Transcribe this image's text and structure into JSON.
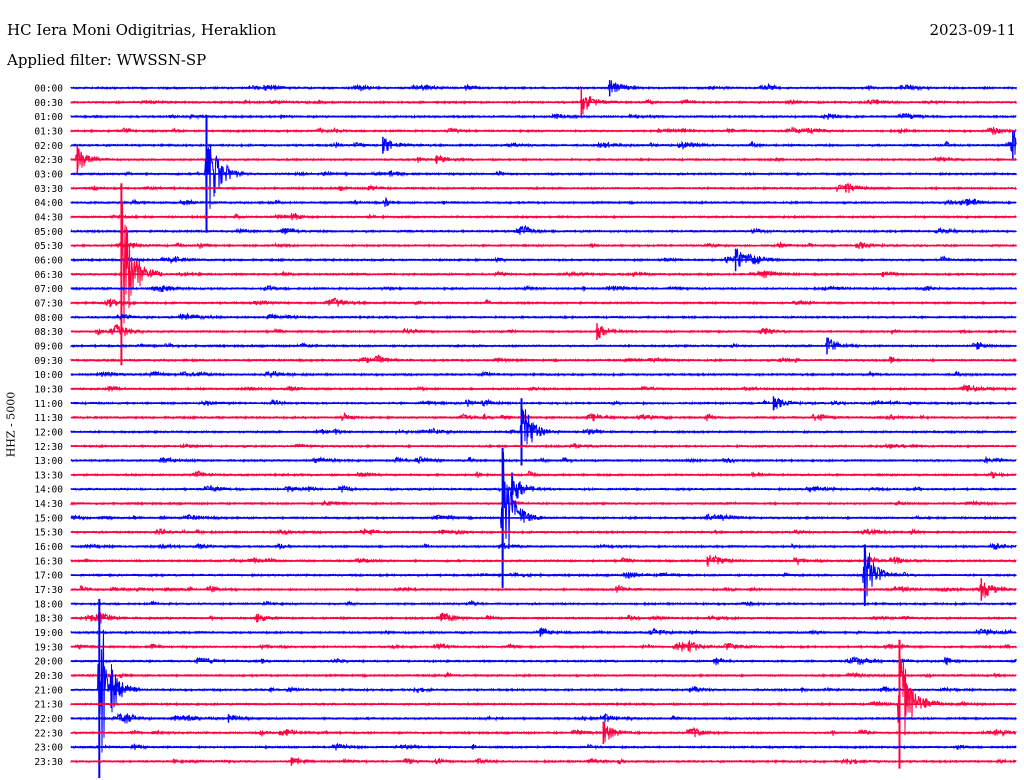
{
  "header": {
    "station": "HC Iera Moni Odigitrias, Heraklion",
    "date": "2023-09-11",
    "filter": "Applied filter: WWSSN-SP"
  },
  "colors": {
    "blue": "#0000ff",
    "red": "#ff0040",
    "background": "#ffffff"
  },
  "chart_data": {
    "type": "line",
    "title": "HC Iera Moni Odigitrias, Heraklion",
    "ylabel": "HHZ - 5000",
    "xlabel": "",
    "grid": false,
    "row_labels": [
      "00:00",
      "00:30",
      "01:00",
      "01:30",
      "02:00",
      "02:30",
      "03:00",
      "03:30",
      "04:00",
      "04:30",
      "05:00",
      "05:30",
      "06:00",
      "06:30",
      "07:00",
      "07:30",
      "08:00",
      "08:30",
      "09:00",
      "09:30",
      "10:00",
      "10:30",
      "11:00",
      "11:30",
      "12:00",
      "12:30",
      "13:00",
      "13:30",
      "14:00",
      "14:30",
      "15:00",
      "15:30",
      "16:00",
      "16:30",
      "17:00",
      "17:30",
      "18:00",
      "18:30",
      "19:00",
      "19:30",
      "20:00",
      "20:30",
      "21:00",
      "21:30",
      "22:00",
      "22:30",
      "23:00",
      "23:30"
    ],
    "row_colors": [
      "blue",
      "red"
    ],
    "events": [
      {
        "row": "00:00",
        "minute": 17.1,
        "amplitude": 0.6
      },
      {
        "row": "00:30",
        "minute": 16.2,
        "amplitude": 1.0
      },
      {
        "row": "02:00",
        "minute": 9.9,
        "amplitude": 0.6
      },
      {
        "row": "02:00",
        "minute": 29.9,
        "amplitude": 1.0
      },
      {
        "row": "02:30",
        "minute": 0.2,
        "amplitude": 1.0
      },
      {
        "row": "02:30",
        "minute": 11.6,
        "amplitude": 0.3
      },
      {
        "row": "03:00",
        "minute": 4.3,
        "amplitude": 4.2
      },
      {
        "row": "03:30",
        "minute": 24.6,
        "amplitude": 0.3
      },
      {
        "row": "06:00",
        "minute": 21.1,
        "amplitude": 0.8
      },
      {
        "row": "06:30",
        "minute": 1.6,
        "amplitude": 6.5
      },
      {
        "row": "08:30",
        "minute": 16.7,
        "amplitude": 0.6
      },
      {
        "row": "09:00",
        "minute": 24.0,
        "amplitude": 0.6
      },
      {
        "row": "11:00",
        "minute": 22.3,
        "amplitude": 0.5
      },
      {
        "row": "12:00",
        "minute": 14.3,
        "amplitude": 2.4
      },
      {
        "row": "14:00",
        "minute": 14.0,
        "amplitude": 1.2
      },
      {
        "row": "15:00",
        "minute": 13.7,
        "amplitude": 5.0
      },
      {
        "row": "16:30",
        "minute": 20.2,
        "amplitude": 0.3
      },
      {
        "row": "17:00",
        "minute": 25.2,
        "amplitude": 2.2
      },
      {
        "row": "17:30",
        "minute": 28.9,
        "amplitude": 0.8
      },
      {
        "row": "18:30",
        "minute": 5.9,
        "amplitude": 0.3
      },
      {
        "row": "19:00",
        "minute": 14.9,
        "amplitude": 0.3
      },
      {
        "row": "19:30",
        "minute": 19.6,
        "amplitude": 0.3
      },
      {
        "row": "21:00",
        "minute": 0.9,
        "amplitude": 6.5
      },
      {
        "row": "21:30",
        "minute": 26.3,
        "amplitude": 4.6
      },
      {
        "row": "22:00",
        "minute": 5.0,
        "amplitude": 0.3
      },
      {
        "row": "22:30",
        "minute": 16.9,
        "amplitude": 0.8
      },
      {
        "row": "23:30",
        "minute": 7.0,
        "amplitude": 0.3
      }
    ]
  }
}
